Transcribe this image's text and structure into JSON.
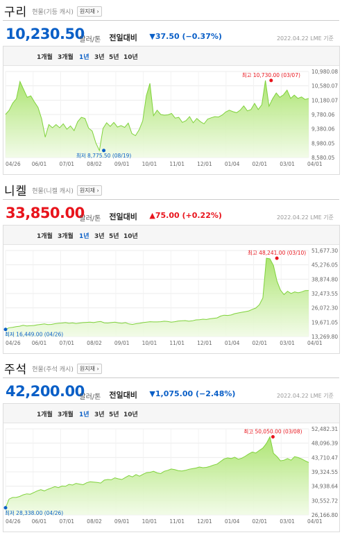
{
  "periods": [
    "1개월",
    "3개월",
    "1년",
    "3년",
    "5년",
    "10년"
  ],
  "compare_label": "전일대비",
  "unit": "달러/톤",
  "original_tag": "원지재",
  "x_labels": [
    "04/26",
    "06/01",
    "07/01",
    "08/02",
    "09/01",
    "10/01",
    "11/01",
    "12/01",
    "01/04",
    "02/01",
    "03/01",
    "04/01"
  ],
  "colors": {
    "up": "#e8141c",
    "down": "#0a5fc7",
    "fill": "#c9ef9a",
    "line": "#7fd23b"
  },
  "panels": [
    {
      "name": "구리",
      "subtitle": "현물(기등 캐시)",
      "price": "10,230.50",
      "change_arrow": "▼",
      "change": "37.50 (−0.37%)",
      "direction": "down",
      "date_source": "2022.04.22 LME 기준",
      "chart_data": {
        "type": "area",
        "yticks": [
          "10,980.08",
          "10,580.07",
          "10,180.07",
          "9,780.06",
          "9,380.06",
          "8,980.05",
          "8,580.05"
        ],
        "ylim": [
          8580.05,
          10980.08
        ],
        "high_label": "최고 10,730.00 (03/07)",
        "low_label": "최저 8,775.50 (08/19)",
        "high_point": [
          0.876,
          10730
        ],
        "low_point": [
          0.324,
          8775.5
        ],
        "values": [
          9780,
          9900,
          10100,
          10220,
          10700,
          10480,
          10260,
          10300,
          10130,
          9980,
          9660,
          9150,
          9500,
          9410,
          9500,
          9410,
          9520,
          9370,
          9460,
          9330,
          9580,
          9700,
          9670,
          9400,
          9320,
          8990,
          8775.5,
          9390,
          9550,
          9450,
          9560,
          9430,
          9470,
          9420,
          9540,
          9250,
          9190,
          9350,
          9600,
          10300,
          10650,
          9750,
          9900,
          9780,
          9760,
          9770,
          9810,
          9680,
          9700,
          9560,
          9610,
          9720,
          9550,
          9670,
          9580,
          9520,
          9650,
          9690,
          9720,
          9710,
          9760,
          9850,
          9900,
          9860,
          9830,
          9900,
          10020,
          9880,
          9920,
          10090,
          9920,
          10050,
          10730,
          10010,
          10220,
          10380,
          10260,
          10330,
          10460,
          10230,
          10320,
          10230,
          10270,
          10200,
          10230
        ]
      }
    },
    {
      "name": "니켈",
      "subtitle": "현물(니켈 캐시)",
      "price": "33,850.00",
      "change_arrow": "▲",
      "change": "75.00 (+0.22%)",
      "direction": "up",
      "date_source": "2022.04.22 LME 기준",
      "chart_data": {
        "type": "area",
        "yticks": [
          "51,677.30",
          "45,276.05",
          "38,874.80",
          "32,473.55",
          "26,072.30",
          "19,671.05",
          "13,269.80"
        ],
        "ylim": [
          13269.8,
          51677.3
        ],
        "high_label": "최고 48,241.00 (03/10)",
        "low_label": "최저 16,449.00 (04/26)",
        "high_point": [
          0.895,
          48241
        ],
        "low_point": [
          0.0,
          16449
        ],
        "values": [
          16449,
          17200,
          17400,
          17700,
          17900,
          18300,
          18000,
          18100,
          18200,
          18500,
          18700,
          18900,
          18600,
          18700,
          19000,
          19200,
          19300,
          19500,
          19200,
          19400,
          19100,
          19300,
          19500,
          19600,
          19700,
          19500,
          19800,
          20000,
          19400,
          19300,
          19500,
          19700,
          19400,
          19200,
          19500,
          18900,
          18700,
          19000,
          19200,
          19500,
          19700,
          19900,
          19800,
          19800,
          19900,
          20100,
          20000,
          19700,
          19900,
          20200,
          20300,
          20400,
          20100,
          20300,
          20700,
          20800,
          21000,
          20900,
          21200,
          21400,
          21600,
          22400,
          22800,
          22700,
          22900,
          23500,
          23800,
          24100,
          24400,
          24700,
          25400,
          26000,
          27500,
          30500,
          48241,
          48000,
          45000,
          38000,
          34000,
          32000,
          33500,
          32500,
          33200,
          32800,
          33200,
          33800,
          33850
        ]
      }
    },
    {
      "name": "주석",
      "subtitle": "현물(주석 캐시)",
      "price": "42,200.00",
      "change_arrow": "▼",
      "change": "1,075.00 (−2.48%)",
      "direction": "down",
      "date_source": "2022.04.22 LME 기준",
      "chart_data": {
        "type": "area",
        "yticks": [
          "52,482.31",
          "48,096.39",
          "43,710.47",
          "39,324.55",
          "34,938.64",
          "30,552.72",
          "26,166.80"
        ],
        "ylim": [
          26166.8,
          52482.31
        ],
        "high_label": "최고 50,050.00 (03/08)",
        "low_label": "최저 28,338.00 (04/26)",
        "high_point": [
          0.882,
          50050
        ],
        "low_point": [
          0.0,
          28338
        ],
        "values": [
          28338,
          31000,
          31500,
          31500,
          31800,
          32300,
          32600,
          32500,
          33000,
          33500,
          33900,
          33500,
          34000,
          34400,
          34800,
          34500,
          35000,
          34900,
          35500,
          35300,
          35800,
          35600,
          35400,
          36000,
          36300,
          36200,
          36100,
          35900,
          36800,
          37000,
          36900,
          37500,
          37200,
          37000,
          37600,
          38200,
          37800,
          38500,
          38000,
          38600,
          39100,
          39200,
          39500,
          39000,
          38800,
          39500,
          39800,
          40200,
          40000,
          39700,
          39600,
          39800,
          40100,
          40300,
          40500,
          40800,
          40600,
          40700,
          41000,
          41400,
          41700,
          42500,
          43300,
          43600,
          43400,
          43800,
          43200,
          43500,
          44100,
          44800,
          45400,
          45100,
          45900,
          46600,
          48000,
          50050,
          45000,
          44000,
          42700,
          42900,
          43400,
          42900,
          44000,
          43700,
          43300,
          42700,
          42200
        ]
      }
    }
  ]
}
